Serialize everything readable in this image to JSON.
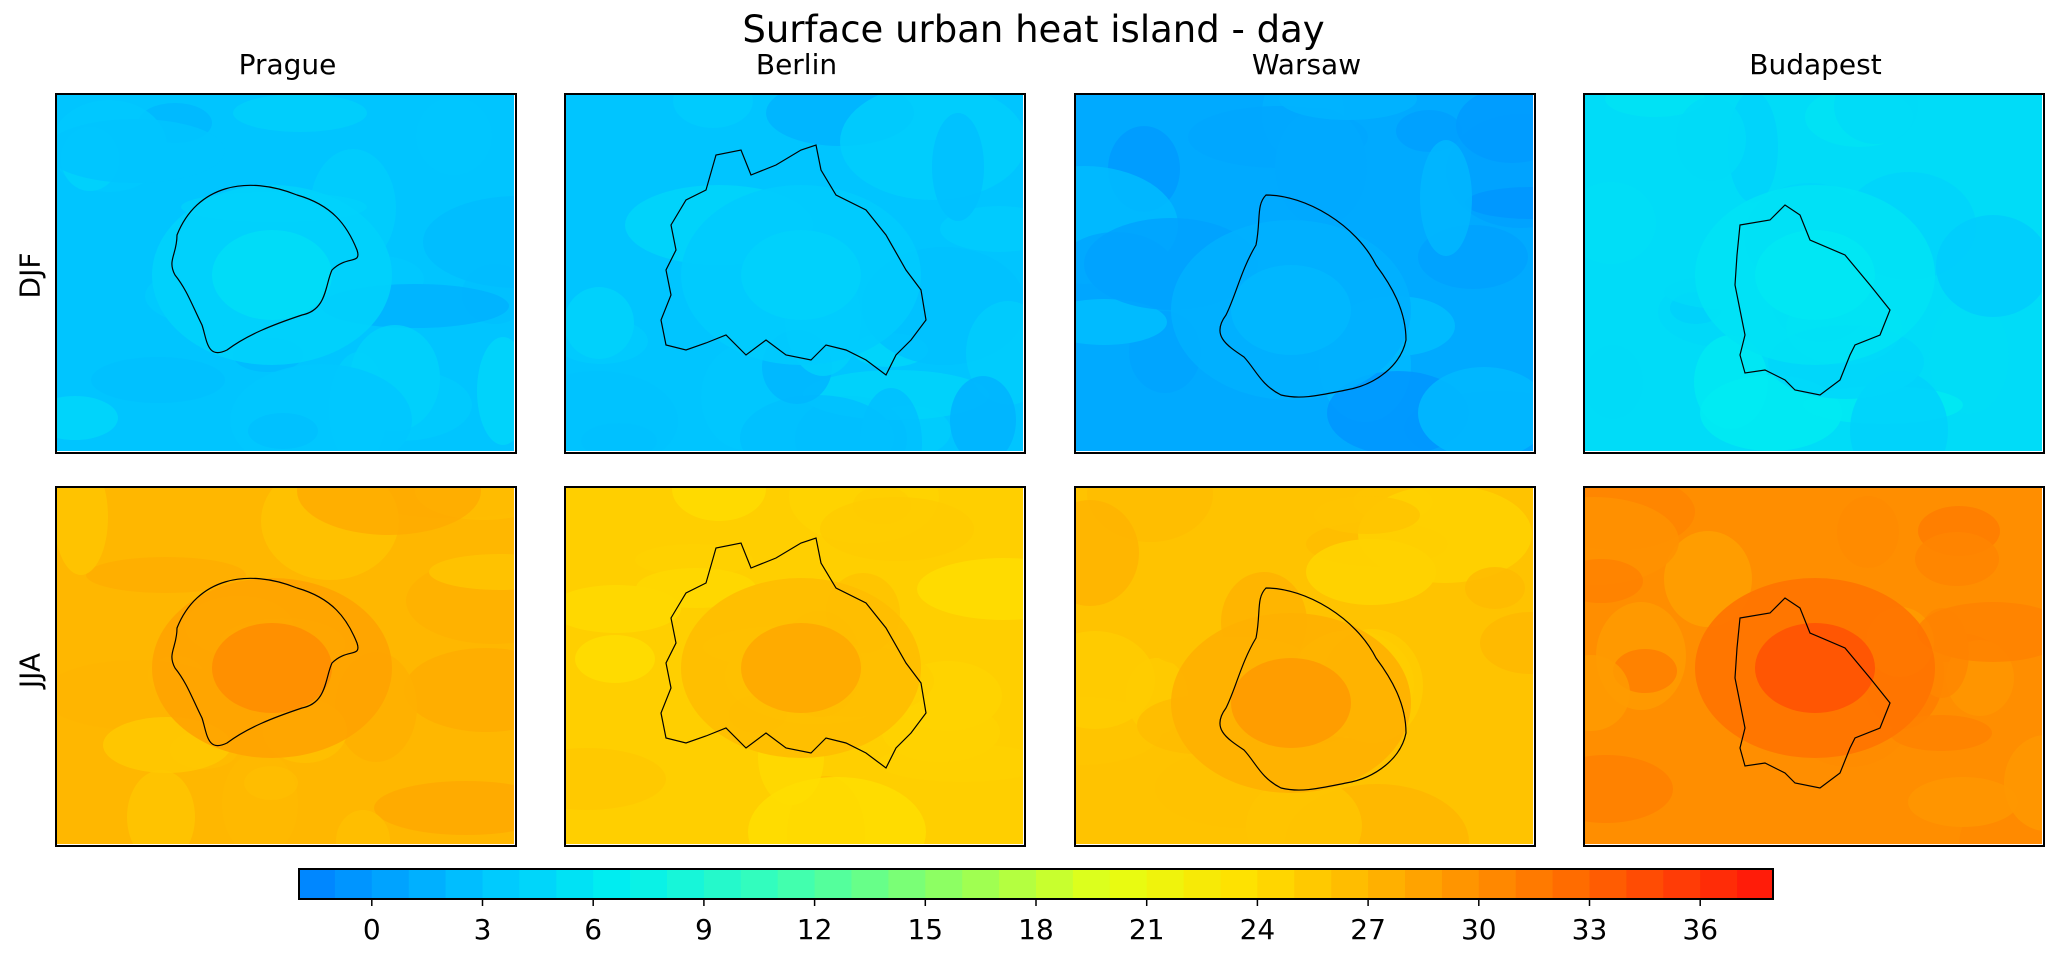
{
  "chart_data": {
    "type": "heatmap",
    "title": "Surface urban heat island - day",
    "columns": [
      "Prague",
      "Berlin",
      "Warsaw",
      "Budapest"
    ],
    "rows": [
      "DJF",
      "JJA"
    ],
    "panels": [
      {
        "row": "DJF",
        "column": "Prague",
        "background_value": 3,
        "urban_value": 5
      },
      {
        "row": "DJF",
        "column": "Berlin",
        "background_value": 3,
        "urban_value": 4
      },
      {
        "row": "DJF",
        "column": "Warsaw",
        "background_value": 1,
        "urban_value": 2
      },
      {
        "row": "DJF",
        "column": "Budapest",
        "background_value": 5,
        "urban_value": 6
      },
      {
        "row": "JJA",
        "column": "Prague",
        "background_value": 27,
        "urban_value": 30
      },
      {
        "row": "JJA",
        "column": "Berlin",
        "background_value": 25,
        "urban_value": 28
      },
      {
        "row": "JJA",
        "column": "Warsaw",
        "background_value": 26,
        "urban_value": 29
      },
      {
        "row": "JJA",
        "column": "Budapest",
        "background_value": 30,
        "urban_value": 34
      }
    ],
    "colorbar": {
      "range": [
        -2,
        38
      ],
      "ticks": [
        "0",
        "3",
        "6",
        "9",
        "12",
        "15",
        "18",
        "21",
        "24",
        "27",
        "30",
        "33",
        "36"
      ],
      "tick_values": [
        0,
        3,
        6,
        9,
        12,
        15,
        18,
        21,
        24,
        27,
        30,
        33,
        36
      ],
      "levels": 40,
      "colormap": "jet-like",
      "orientation": "horizontal"
    }
  }
}
